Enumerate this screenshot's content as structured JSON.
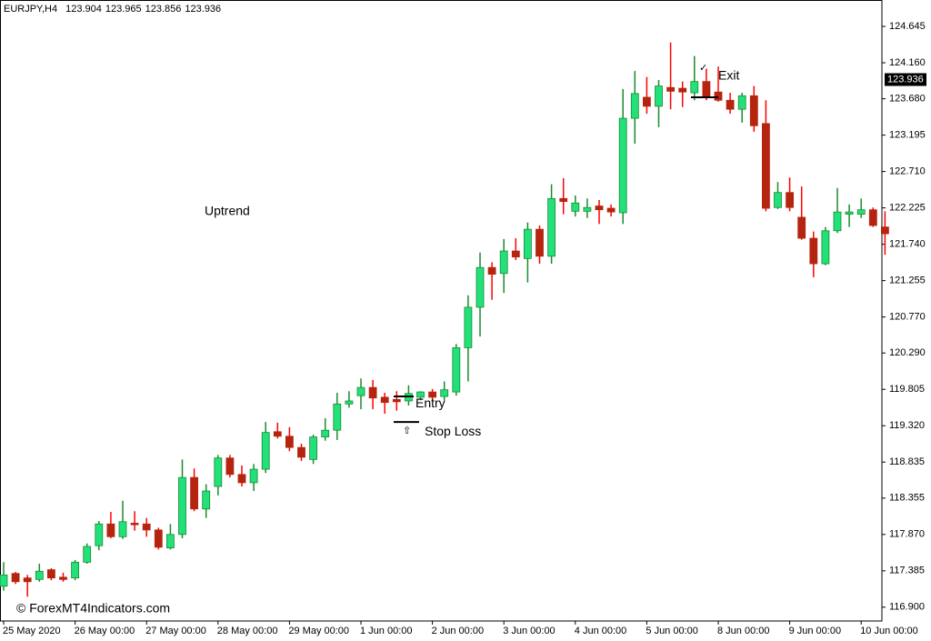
{
  "chart_data": {
    "type": "candlestick",
    "symbol": "EURJPY,H4",
    "header_values": [
      123.904,
      123.965,
      123.856,
      123.936
    ],
    "last_price": 123.936,
    "watermark": "© ForexMT4Indicators.com",
    "up_color": "#22e07a",
    "up_wick_color": "#1a8a2e",
    "down_color": "#b5240f",
    "down_wick_color": "#ff0000",
    "categories": [
      "25 May 2020",
      null,
      null,
      null,
      null,
      null,
      "26 May 00:00",
      null,
      null,
      null,
      null,
      null,
      "27 May 00:00",
      null,
      null,
      null,
      null,
      null,
      "28 May 00:00",
      null,
      null,
      null,
      null,
      null,
      "29 May 00:00",
      null,
      null,
      null,
      null,
      null,
      "1 Jun 00:00",
      null,
      null,
      null,
      null,
      null,
      "2 Jun 00:00",
      null,
      null,
      null,
      null,
      null,
      "3 Jun 00:00",
      null,
      null,
      null,
      null,
      null,
      "4 Jun 00:00",
      null,
      null,
      null,
      null,
      null,
      "5 Jun 00:00",
      null,
      null,
      null,
      null,
      null,
      "8 Jun 00:00",
      null,
      null,
      null,
      null,
      null,
      "9 Jun 00:00",
      null,
      null,
      null,
      null,
      null,
      "10 Jun 00:00",
      null,
      null
    ],
    "open": [
      117.18,
      117.35,
      117.29,
      117.27,
      117.4,
      117.3,
      117.29,
      117.5,
      117.72,
      118.01,
      117.84,
      118.02,
      118.01,
      117.93,
      117.69,
      117.87,
      118.63,
      118.21,
      118.51,
      118.89,
      118.67,
      118.56,
      118.74,
      119.24,
      119.18,
      119.03,
      118.87,
      119.17,
      119.26,
      119.61,
      119.72,
      119.83,
      119.7,
      119.67,
      119.65,
      119.7,
      119.77,
      119.71,
      119.77,
      120.36,
      120.9,
      121.43,
      121.35,
      121.65,
      121.55,
      121.94,
      121.58,
      122.35,
      122.18,
      122.18,
      122.25,
      122.22,
      122.16,
      123.42,
      123.7,
      123.58,
      123.83,
      123.82,
      123.76,
      123.91,
      123.77,
      123.66,
      123.54,
      123.72,
      123.35,
      122.23,
      122.43,
      122.1,
      121.82,
      121.48,
      121.92,
      122.14,
      122.14,
      122.2,
      121.97
    ],
    "high": [
      117.5,
      117.37,
      117.33,
      117.48,
      117.42,
      117.36,
      117.53,
      117.75,
      118.05,
      118.17,
      118.32,
      118.18,
      118.09,
      117.96,
      118.01,
      118.87,
      118.75,
      118.54,
      118.93,
      118.93,
      118.79,
      118.81,
      119.37,
      119.36,
      119.3,
      119.08,
      119.2,
      119.42,
      119.76,
      119.78,
      119.95,
      119.93,
      119.76,
      119.78,
      119.86,
      119.78,
      119.81,
      119.91,
      120.41,
      121.06,
      121.63,
      121.5,
      121.81,
      121.82,
      122.03,
      121.99,
      122.54,
      122.62,
      122.39,
      122.35,
      122.33,
      122.27,
      123.81,
      124.05,
      123.97,
      123.93,
      124.43,
      123.91,
      124.25,
      124.08,
      124.11,
      123.76,
      123.76,
      123.85,
      123.66,
      122.57,
      122.63,
      122.51,
      121.91,
      121.97,
      122.49,
      122.27,
      122.35,
      122.23,
      122.18
    ],
    "low": [
      117.12,
      117.21,
      117.04,
      117.24,
      117.26,
      117.24,
      117.26,
      117.48,
      117.66,
      117.82,
      117.81,
      117.92,
      117.84,
      117.67,
      117.67,
      117.82,
      118.18,
      118.09,
      118.39,
      118.63,
      118.51,
      118.45,
      118.69,
      119.15,
      118.98,
      118.85,
      118.81,
      119.12,
      119.13,
      119.56,
      119.54,
      119.54,
      119.48,
      119.52,
      119.59,
      119.66,
      119.66,
      119.66,
      119.72,
      119.91,
      120.51,
      121.0,
      121.09,
      121.53,
      121.23,
      121.48,
      121.48,
      122.14,
      122.11,
      122.09,
      122.01,
      122.11,
      122.01,
      123.08,
      123.48,
      123.3,
      123.54,
      123.57,
      123.66,
      123.66,
      123.64,
      123.48,
      123.36,
      123.24,
      122.18,
      122.21,
      122.18,
      121.8,
      121.3,
      121.46,
      121.89,
      121.97,
      122.09,
      121.97,
      121.6
    ],
    "close": [
      117.33,
      117.24,
      117.24,
      117.38,
      117.29,
      117.27,
      117.5,
      117.71,
      118.01,
      117.84,
      118.04,
      118.0,
      117.93,
      117.7,
      117.87,
      118.63,
      118.21,
      118.45,
      118.89,
      118.67,
      118.56,
      118.74,
      119.23,
      119.18,
      119.03,
      118.9,
      119.17,
      119.26,
      119.61,
      119.65,
      119.83,
      119.69,
      119.63,
      119.64,
      119.75,
      119.77,
      119.7,
      119.8,
      120.36,
      120.9,
      121.43,
      121.34,
      121.65,
      121.57,
      121.94,
      121.58,
      122.35,
      122.31,
      122.29,
      122.23,
      122.2,
      122.17,
      123.42,
      123.75,
      123.58,
      123.85,
      123.78,
      123.77,
      123.91,
      123.71,
      123.66,
      123.54,
      123.72,
      123.32,
      122.22,
      122.43,
      122.23,
      121.82,
      121.48,
      121.92,
      122.17,
      122.17,
      122.2,
      121.99,
      121.88
    ],
    "ylim": [
      116.716,
      124.997
    ],
    "yticks": [
      124.645,
      {
        "value": 124.16,
        "label": "124.160"
      },
      {
        "value": 123.68,
        "label": "123.680"
      },
      123.195,
      {
        "value": 122.71,
        "label": "122.710"
      },
      122.225,
      {
        "value": 121.74,
        "label": "121.740"
      },
      121.255,
      {
        "value": 120.77,
        "label": "120.770"
      },
      {
        "value": 120.29,
        "label": "120.290"
      },
      119.805,
      {
        "value": 119.32,
        "label": "119.320"
      },
      118.835,
      118.355,
      {
        "value": 117.87,
        "label": "117.870"
      },
      117.385,
      {
        "value": 116.9,
        "label": "116.900"
      }
    ],
    "annotations": [
      {
        "text": "Uptrend"
      },
      {
        "text": "Entry",
        "level": 119.71
      },
      {
        "text": "Stop Loss",
        "level": 119.37,
        "icon": "⇧"
      },
      {
        "text": "Exit",
        "level": 123.7,
        "icon": "✓"
      }
    ]
  }
}
